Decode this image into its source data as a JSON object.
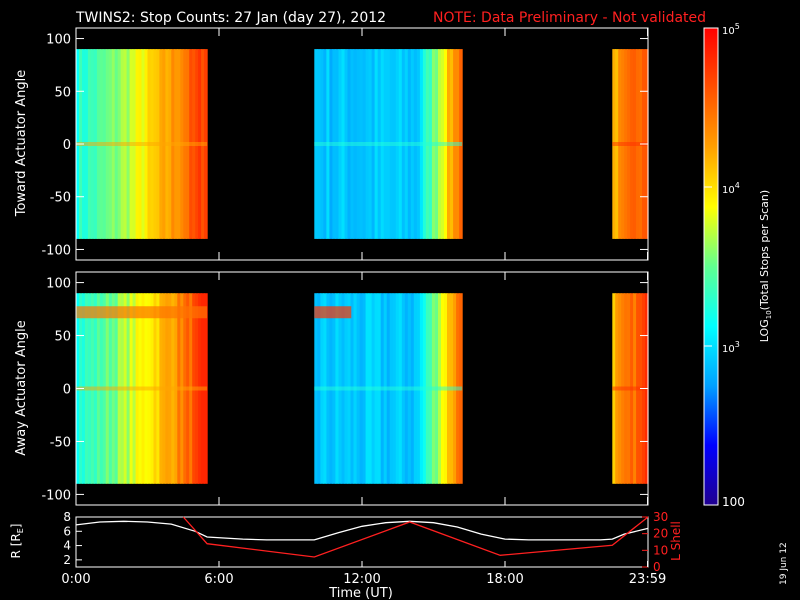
{
  "header": {
    "title": "TWINS2: Stop Counts: 27 Jan (day  27), 2012",
    "note": "NOTE: Data Preliminary - Not validated"
  },
  "date_stamp": "19 Jun 12",
  "colors": {
    "note_red": "#ff2020",
    "axis": "#ffffff",
    "background": "#000000"
  },
  "chart_data": [
    {
      "type": "heatmap",
      "name": "toward-panel",
      "ylabel": "Toward Actuator Angle",
      "ylim": [
        -110,
        110
      ],
      "yticks": [
        "100",
        "50",
        "0",
        "-50",
        "-100"
      ],
      "ytick_values": [
        100,
        50,
        0,
        -50,
        -100
      ],
      "xlim_hours": [
        0,
        24
      ],
      "data_angle_range": [
        -90,
        90
      ],
      "segments_hours": [
        [
          0.0,
          5.5
        ],
        [
          10.0,
          16.2
        ],
        [
          22.5,
          24.0
        ]
      ],
      "scale": "log10"
    },
    {
      "type": "heatmap",
      "name": "away-panel",
      "ylabel": "Away Actuator Angle",
      "ylim": [
        -110,
        110
      ],
      "yticks": [
        "100",
        "50",
        "0",
        "-50",
        "-100"
      ],
      "ytick_values": [
        100,
        50,
        0,
        -50,
        -100
      ],
      "xlim_hours": [
        0,
        24
      ],
      "data_angle_range": [
        -90,
        90
      ],
      "segments_hours": [
        [
          0.0,
          5.5
        ],
        [
          10.0,
          16.2
        ],
        [
          22.5,
          24.0
        ]
      ],
      "scale": "log10"
    },
    {
      "type": "line",
      "name": "orbit-panel",
      "xlabel": "Time (UT)",
      "xticks": [
        "0:00",
        "6:00",
        "12:00",
        "18:00",
        "23:59"
      ],
      "xtick_values": [
        0,
        6,
        12,
        18,
        23.98
      ],
      "left_axis": {
        "label": "R [R",
        "label_sub": "E",
        "label_end": "]",
        "ylim": [
          1,
          8
        ],
        "yticks": [
          "8",
          "6",
          "4",
          "2"
        ],
        "ytick_values": [
          8,
          6,
          4,
          2
        ]
      },
      "right_axis": {
        "label": "L Shell",
        "ylim": [
          0,
          30
        ],
        "yticks": [
          "30",
          "20",
          "10",
          "0"
        ],
        "ytick_values": [
          30,
          20,
          10,
          0
        ]
      },
      "series": [
        {
          "name": "R",
          "color": "#ffffff",
          "axis": "left",
          "x": [
            0,
            1,
            2,
            3,
            4,
            5,
            5.5,
            7,
            8,
            9,
            10,
            11,
            12,
            13,
            14,
            15,
            16,
            17,
            18,
            19,
            20,
            21,
            22,
            22.5,
            23,
            24
          ],
          "y": [
            6.9,
            7.3,
            7.4,
            7.3,
            7.0,
            6.0,
            5.2,
            4.9,
            4.8,
            4.8,
            4.8,
            5.8,
            6.7,
            7.2,
            7.4,
            7.2,
            6.6,
            5.6,
            4.9,
            4.8,
            4.8,
            4.8,
            4.8,
            4.9,
            5.6,
            6.4
          ]
        },
        {
          "name": "L Shell",
          "color": "#ff2020",
          "axis": "right",
          "x": [
            4.5,
            5.5,
            10.0,
            14.0,
            17.8,
            22.5,
            24.0
          ],
          "y": [
            30,
            14,
            6,
            27,
            7,
            13,
            30
          ]
        }
      ]
    }
  ],
  "colorbar": {
    "label_prefix": "LOG",
    "label_sub": "10",
    "label_suffix": "(Total Stops per Scan)",
    "ticks": [
      {
        "base": "10",
        "exp": "5",
        "value": 5
      },
      {
        "base": "10",
        "exp": "4",
        "value": 4
      },
      {
        "base": "10",
        "exp": "3",
        "value": 3
      }
    ],
    "bottom_label": "100",
    "range_log": [
      2,
      5
    ],
    "stops": [
      "#200090",
      "#0000ff",
      "#00a0ff",
      "#00ffff",
      "#60ff90",
      "#ffff00",
      "#ffa000",
      "#ff5000",
      "#ff0000"
    ]
  }
}
